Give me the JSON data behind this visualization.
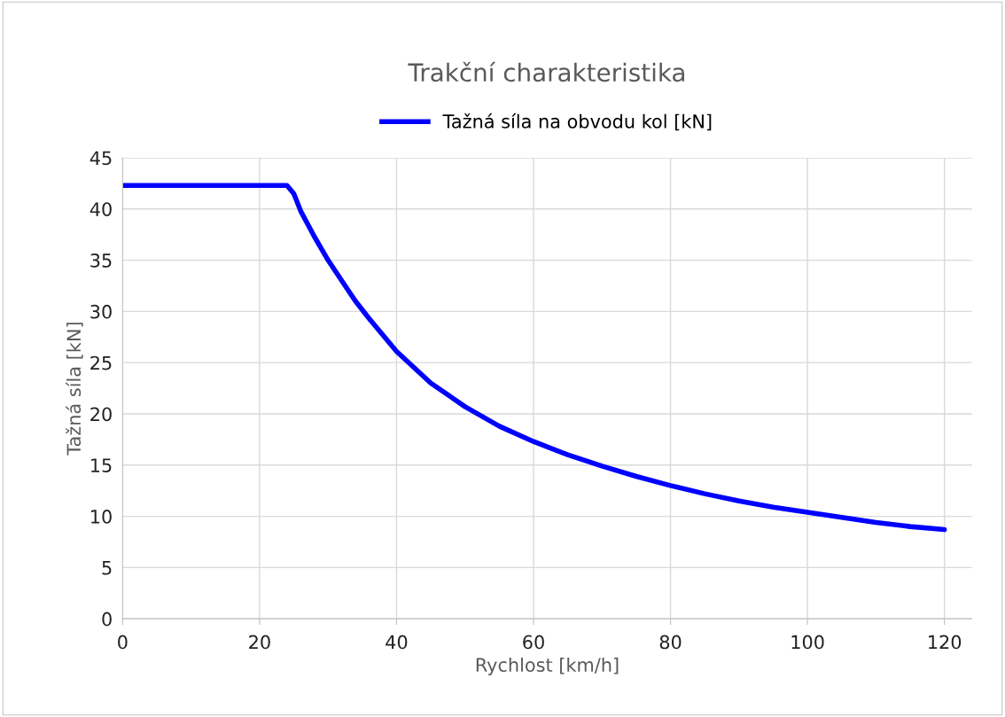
{
  "chart_data": {
    "type": "line",
    "title": "Trakční charakteristika",
    "xlabel": "Rychlost [km/h]",
    "ylabel": "Tažná síla [kN]",
    "x": [
      0,
      24,
      25,
      26,
      28,
      30,
      32,
      34,
      36,
      38,
      40,
      45,
      50,
      55,
      60,
      65,
      70,
      75,
      80,
      85,
      90,
      95,
      100,
      105,
      110,
      115,
      120
    ],
    "series": [
      {
        "name": "Tažná síla na obvodu kol [kN]",
        "color": "#0000ff",
        "values": [
          42.3,
          42.3,
          41.5,
          39.8,
          37.3,
          35.0,
          33.0,
          31.0,
          29.3,
          27.7,
          26.1,
          23.0,
          20.7,
          18.8,
          17.3,
          16.0,
          14.9,
          13.9,
          13.0,
          12.2,
          11.5,
          10.9,
          10.4,
          9.9,
          9.4,
          9.0,
          8.7
        ]
      }
    ],
    "xlim": [
      0,
      124
    ],
    "xticks": [
      0,
      20,
      40,
      60,
      80,
      100,
      120
    ],
    "ylim": [
      0,
      45
    ],
    "yticks": [
      0,
      5,
      10,
      15,
      20,
      25,
      30,
      35,
      40,
      45
    ],
    "grid": true,
    "legend": "top",
    "marker": "none",
    "line_style": "solid"
  }
}
